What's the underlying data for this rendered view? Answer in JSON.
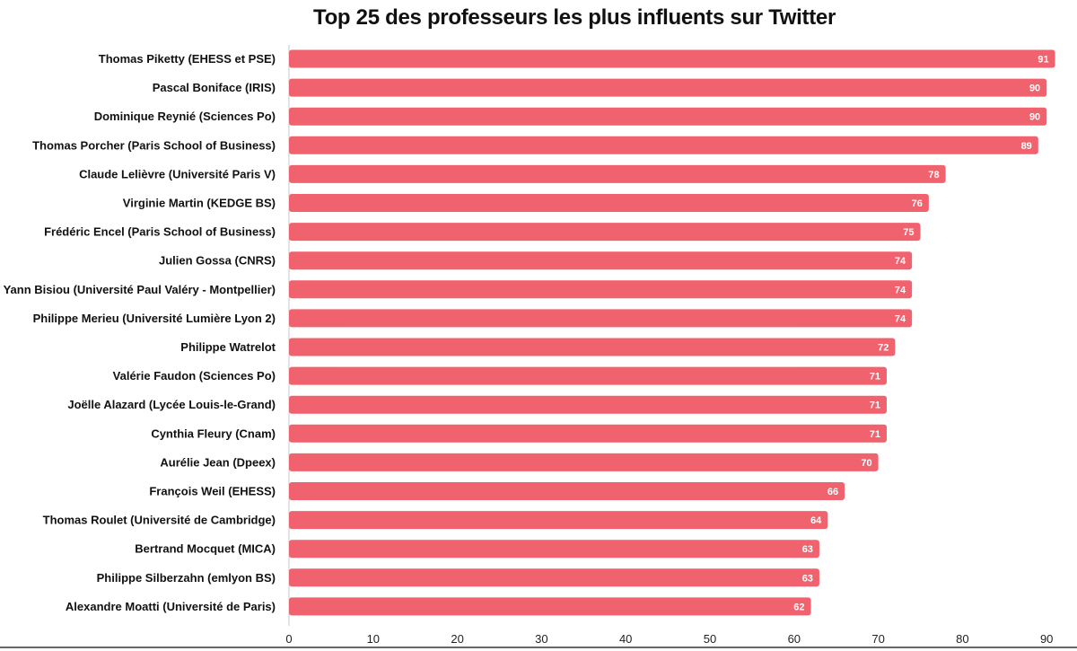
{
  "chart_data": {
    "type": "bar",
    "orientation": "horizontal",
    "title": "Top 25 des professeurs les plus influents sur Twitter",
    "xlabel": "",
    "ylabel": "",
    "xlim": [
      0,
      90
    ],
    "x_ticks": [
      0,
      10,
      20,
      30,
      40,
      50,
      60,
      70,
      80,
      90
    ],
    "grid": false,
    "legend": "none",
    "bar_color": "#f0626e",
    "categories": [
      "Thomas Piketty (EHESS et PSE)",
      "Pascal Boniface (IRIS)",
      "Dominique Reynié (Sciences Po)",
      "Thomas Porcher (Paris School of Business)",
      "Claude Lelièvre (Université Paris V)",
      "Virginie Martin (KEDGE BS)",
      "Frédéric Encel (Paris School of Business)",
      "Julien Gossa (CNRS)",
      "Yann Bisiou (Université Paul Valéry - Montpellier)",
      "Philippe Merieu (Université Lumière Lyon 2)",
      "Philippe Watrelot",
      "Valérie Faudon (Sciences Po)",
      "Joëlle Alazard (Lycée Louis-le-Grand)",
      "Cynthia Fleury (Cnam)",
      "Aurélie Jean (Dpeex)",
      "François Weil (EHESS)",
      "Thomas Roulet (Université de Cambridge)",
      "Bertrand Mocquet (MICA)",
      "Philippe Silberzahn (emlyon BS)",
      "Alexandre Moatti (Université de Paris)"
    ],
    "values": [
      91,
      90,
      90,
      89,
      78,
      76,
      75,
      74,
      74,
      74,
      72,
      71,
      71,
      71,
      70,
      66,
      64,
      63,
      63,
      62
    ]
  }
}
